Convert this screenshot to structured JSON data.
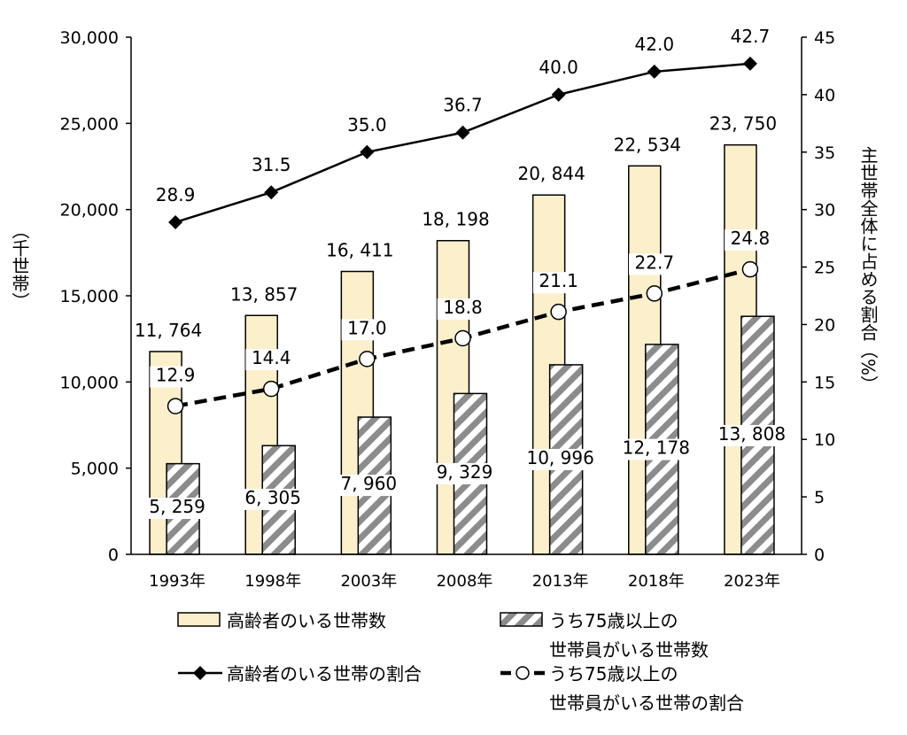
{
  "chart_data": {
    "type": "bar",
    "categories": [
      "1993年",
      "1998年",
      "2003年",
      "2008年",
      "2013年",
      "2018年",
      "2023年"
    ],
    "left_axis": {
      "label": "（千世帯）",
      "ylim": [
        0,
        30000
      ],
      "ticks": [
        "0",
        "5,000",
        "10,000",
        "15,000",
        "20,000",
        "25,000",
        "30,000"
      ]
    },
    "right_axis": {
      "label": "主世帯全体に占める割合（%）",
      "ylim": [
        0,
        45
      ],
      "ticks": [
        "0",
        "5",
        "10",
        "15",
        "20",
        "25",
        "30",
        "35",
        "40",
        "45"
      ]
    },
    "series": [
      {
        "name": "高齢者のいる世帯数",
        "type": "bar",
        "axis": "left",
        "color": "#FCEFCB",
        "values": [
          11764,
          13857,
          16411,
          18198,
          20844,
          22534,
          23750
        ],
        "labels": [
          "11, 764",
          "13, 857",
          "16, 411",
          "18, 198",
          "20, 844",
          "22, 534",
          "23, 750"
        ]
      },
      {
        "name": "うち75歳以上の世帯員がいる世帯数",
        "type": "bar",
        "axis": "left",
        "pattern": "diagonal-hatch",
        "color": "#888888",
        "values": [
          5259,
          6305,
          7960,
          9329,
          10996,
          12178,
          13808
        ],
        "labels": [
          "5, 259",
          "6, 305",
          "7, 960",
          "9, 329",
          "10, 996",
          "12, 178",
          "13, 808"
        ]
      },
      {
        "name": "高齢者のいる世帯の割合",
        "type": "line",
        "axis": "right",
        "marker": "diamond",
        "color": "#000000",
        "values": [
          28.9,
          31.5,
          35.0,
          36.7,
          40.0,
          42.0,
          42.7
        ],
        "labels": [
          "28.9",
          "31.5",
          "35.0",
          "36.7",
          "40.0",
          "42.0",
          "42.7"
        ]
      },
      {
        "name": "うち75歳以上の世帯員がいる世帯の割合",
        "type": "line",
        "axis": "right",
        "marker": "open-circle",
        "dashed": true,
        "color": "#000000",
        "values": [
          12.9,
          14.4,
          17.0,
          18.8,
          21.1,
          22.7,
          24.8
        ],
        "labels": [
          "12.9",
          "14.4",
          "17.0",
          "18.8",
          "21.1",
          "22.7",
          "24.8"
        ]
      }
    ],
    "legend": {
      "placement": "bottom",
      "items": [
        {
          "lines": [
            "高齢者のいる世帯数"
          ]
        },
        {
          "lines": [
            "うち75歳以上の",
            "世帯員がいる世帯数"
          ]
        },
        {
          "lines": [
            "高齢者のいる世帯の割合"
          ]
        },
        {
          "lines": [
            "うち75歳以上の",
            "世帯員がいる世帯の割合"
          ]
        }
      ]
    },
    "grid": false
  }
}
